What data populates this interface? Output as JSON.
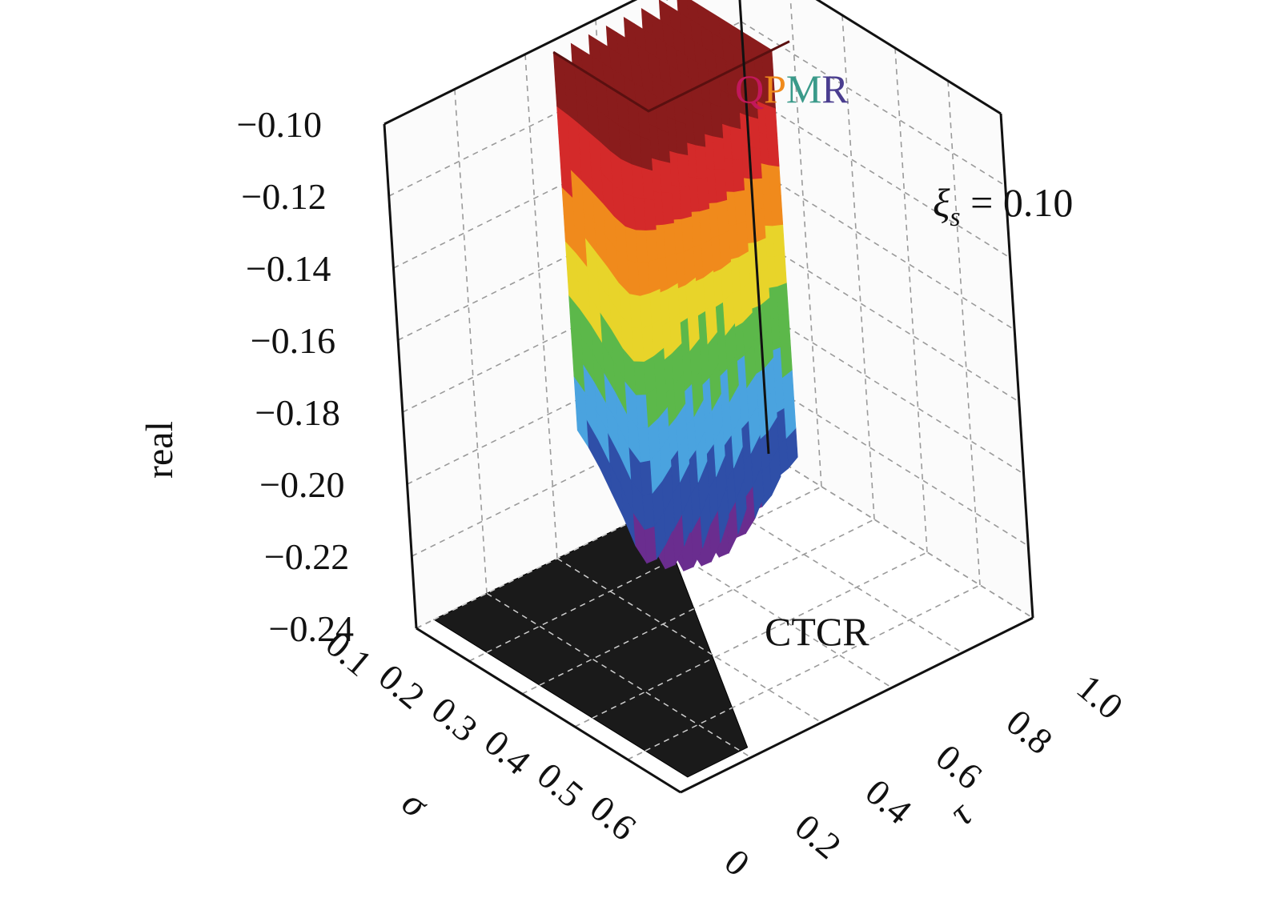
{
  "chart_data": {
    "type": "surface3d",
    "title": "",
    "xlabel": "σ",
    "ylabel": "τ",
    "zlabel": "real",
    "x_ticks": [
      "0.1",
      "0.2",
      "0.3",
      "0.4",
      "0.5",
      "0.6"
    ],
    "y_ticks": [
      "0",
      "0.2",
      "0.4",
      "0.6",
      "0.8",
      "1.0"
    ],
    "z_ticks": [
      "−0.10",
      "−0.12",
      "−0.14",
      "−0.16",
      "−0.18",
      "−0.20",
      "−0.22",
      "−0.24"
    ],
    "xlim": [
      0.1,
      0.6
    ],
    "ylim": [
      0,
      1.0
    ],
    "zlim": [
      -0.24,
      -0.1
    ],
    "grid": true,
    "colormap": [
      "#6a2d8f",
      "#2f4fa8",
      "#4aa3df",
      "#5cb84a",
      "#e8d42a",
      "#f08a1c",
      "#d42a2a",
      "#8a1c1c"
    ],
    "series": [
      {
        "name": "QPMR",
        "rows_sigma": [
          0.12,
          0.14,
          0.16,
          0.18,
          0.2,
          0.22,
          0.24,
          0.26,
          0.28,
          0.3
        ],
        "cols_tau": [
          0.45,
          0.5,
          0.55,
          0.6,
          0.65,
          0.7,
          0.75,
          0.8,
          0.85
        ],
        "real": [
          [
            -0.205,
            -0.205,
            -0.205,
            -0.206,
            -0.205,
            -0.205,
            -0.205,
            -0.205,
            -0.205
          ],
          [
            -0.208,
            -0.209,
            -0.21,
            -0.211,
            -0.211,
            -0.21,
            -0.209,
            -0.208,
            -0.207
          ],
          [
            -0.212,
            -0.213,
            -0.215,
            -0.216,
            -0.216,
            -0.215,
            -0.213,
            -0.211,
            -0.21
          ],
          [
            -0.217,
            -0.219,
            -0.221,
            -0.222,
            -0.222,
            -0.221,
            -0.218,
            -0.215,
            -0.213
          ],
          [
            -0.222,
            -0.225,
            -0.227,
            -0.229,
            -0.229,
            -0.228,
            -0.224,
            -0.219,
            -0.216
          ],
          [
            -0.228,
            -0.231,
            -0.234,
            -0.236,
            -0.236,
            -0.234,
            -0.229,
            -0.223,
            -0.218
          ],
          [
            -0.231,
            -0.235,
            -0.238,
            -0.239,
            -0.239,
            -0.236,
            -0.231,
            -0.224,
            -0.219
          ],
          [
            -0.228,
            -0.232,
            -0.235,
            -0.236,
            -0.236,
            -0.233,
            -0.228,
            -0.222,
            -0.217
          ],
          [
            -0.222,
            -0.225,
            -0.228,
            -0.229,
            -0.229,
            -0.227,
            -0.223,
            -0.218,
            -0.214
          ],
          [
            -0.215,
            -0.217,
            -0.219,
            -0.22,
            -0.22,
            -0.219,
            -0.216,
            -0.213,
            -0.21
          ]
        ],
        "top_real": -0.1
      },
      {
        "name": "CTCR",
        "color": "#1a1a1a",
        "real": -0.24,
        "region_corners_sigma_tau": [
          [
            0.1,
            0.05
          ],
          [
            0.58,
            0.05
          ],
          [
            0.58,
            0.22
          ],
          [
            0.1,
            0.68
          ]
        ]
      }
    ],
    "annotations": {
      "qpmr_label": [
        "Q",
        "P",
        "M",
        "R"
      ],
      "qpmr_colors": [
        "#c2185b",
        "#f08a1c",
        "#3a9a8a",
        "#4a3d8f"
      ],
      "xi_symbol": "ξ",
      "xi_subscript": "s",
      "xi_value": " = 0.10",
      "ctcr_label": "CTCR"
    }
  }
}
